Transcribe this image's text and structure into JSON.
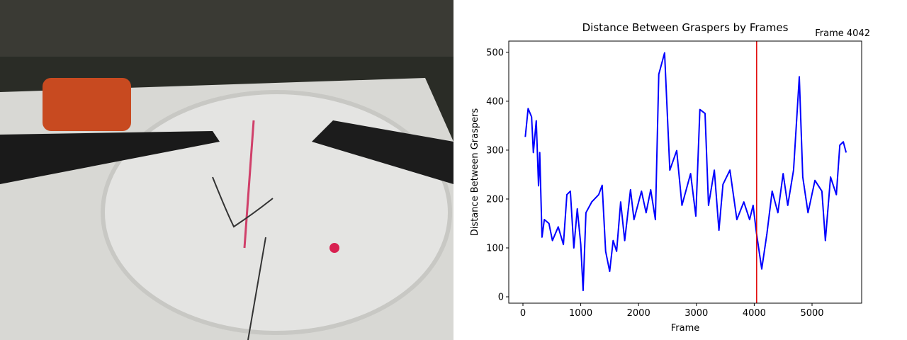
{
  "chart_data": {
    "type": "line",
    "title": "Distance Between Graspers by Frames",
    "xlabel": "Frame",
    "ylabel": "Distance Between Graspers",
    "x": [
      40,
      90,
      150,
      180,
      230,
      270,
      290,
      330,
      370,
      450,
      510,
      610,
      700,
      760,
      820,
      880,
      940,
      1000,
      1040,
      1090,
      1190,
      1310,
      1370,
      1430,
      1500,
      1560,
      1620,
      1690,
      1760,
      1860,
      1920,
      2050,
      2130,
      2210,
      2290,
      2350,
      2450,
      2540,
      2660,
      2750,
      2900,
      2990,
      3060,
      3150,
      3210,
      3310,
      3390,
      3460,
      3580,
      3700,
      3820,
      3920,
      3980,
      4040,
      4130,
      4220,
      4310,
      4410,
      4500,
      4580,
      4680,
      4780,
      4840,
      4930,
      5050,
      5170,
      5230,
      5320,
      5420,
      5480,
      5540,
      5590
    ],
    "series": [
      {
        "color": "#0000ff",
        "values": [
          327,
          385,
          368,
          295,
          360,
          227,
          295,
          122,
          158,
          150,
          115,
          143,
          107,
          209,
          216,
          100,
          180,
          107,
          13,
          172,
          194,
          209,
          228,
          93,
          52,
          115,
          93,
          194,
          115,
          219,
          158,
          216,
          172,
          219,
          158,
          455,
          499,
          259,
          299,
          187,
          252,
          165,
          383,
          375,
          187,
          259,
          136,
          230,
          259,
          158,
          194,
          158,
          187,
          129,
          57,
          129,
          216,
          172,
          252,
          187,
          259,
          450,
          245,
          172,
          238,
          216,
          115,
          245,
          209,
          310,
          317,
          295
        ]
      }
    ],
    "marker": {
      "x": 4042,
      "label": "Frame 4042",
      "color": "#e00000"
    },
    "xlim": [
      -245,
      5858
    ],
    "ylim": [
      -13,
      523
    ],
    "xticks": [
      0,
      1000,
      2000,
      3000,
      4000,
      5000
    ],
    "yticks": [
      0,
      100,
      200,
      300,
      400,
      500
    ]
  }
}
